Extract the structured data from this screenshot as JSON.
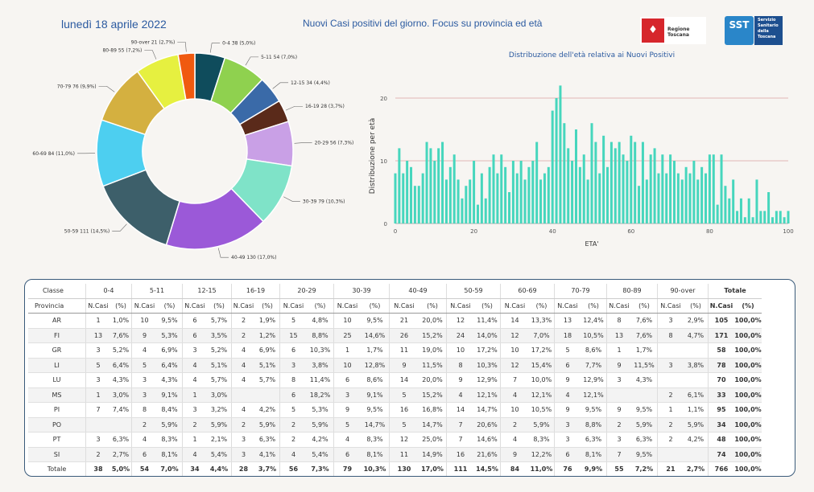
{
  "header": {
    "date": "lunedì 18 aprile 2022",
    "title": "Nuovi Casi positivi del giorno. Focus su provincia ed età",
    "logo_rt": "Regione Toscana",
    "logo_sst_short": "SST",
    "logo_sst_lines": [
      "Servizio",
      "Sanitario",
      "della",
      "Toscana"
    ]
  },
  "chart_data": [
    {
      "type": "pie",
      "title": "",
      "labels": [
        "0-4",
        "5-11",
        "12-15",
        "16-19",
        "20-29",
        "30-39",
        "40-49",
        "50-59",
        "60-69",
        "70-79",
        "80-89",
        "90-over"
      ],
      "values": [
        38,
        54,
        34,
        28,
        56,
        79,
        130,
        111,
        84,
        76,
        55,
        21
      ],
      "percents": [
        "5,0%",
        "7,0%",
        "4,4%",
        "3,7%",
        "7,3%",
        "10,3%",
        "17,0%",
        "14,5%",
        "11,0%",
        "9,9%",
        "7,2%",
        "2,7%"
      ],
      "slice_labels": [
        "0-4 38 (5,0%)",
        "5-11 54 (7,0%)",
        "12-15 34 (4,4%)",
        "16-19 28 (3,7%)",
        "20-29 56 (7,3%)",
        "30-39 79 (10,3%)",
        "40-49 130 (17,0%)",
        "50-59 111 (14,5%)",
        "60-69 84 (11,0%)",
        "70-79 76 (9,9%)",
        "80-89 55 (7,2%)",
        "90-over 21 (2,7%)"
      ],
      "colors": [
        "#0f4c5c",
        "#8fd14f",
        "#3a6aa8",
        "#5a2a1a",
        "#c9a0e6",
        "#7fe3c8",
        "#9b59d8",
        "#3d5f6a",
        "#4dcff0",
        "#d4b040",
        "#e6f040",
        "#f05a10"
      ],
      "donut": true
    },
    {
      "type": "bar",
      "title": "Distribuzione dell'età relativa ai Nuovi Positivi",
      "xlabel": "ETA'",
      "ylabel": "Distribuzione per età",
      "xlim": [
        0,
        100
      ],
      "ylim": [
        0,
        22
      ],
      "xticks": [
        0,
        20,
        40,
        60,
        80,
        100
      ],
      "yticks": [
        0,
        10,
        20
      ],
      "color": "#46d6bd",
      "x": [
        0,
        1,
        2,
        3,
        4,
        5,
        6,
        7,
        8,
        9,
        10,
        11,
        12,
        13,
        14,
        15,
        16,
        17,
        18,
        19,
        20,
        21,
        22,
        23,
        24,
        25,
        26,
        27,
        28,
        29,
        30,
        31,
        32,
        33,
        34,
        35,
        36,
        37,
        38,
        39,
        40,
        41,
        42,
        43,
        44,
        45,
        46,
        47,
        48,
        49,
        50,
        51,
        52,
        53,
        54,
        55,
        56,
        57,
        58,
        59,
        60,
        61,
        62,
        63,
        64,
        65,
        66,
        67,
        68,
        69,
        70,
        71,
        72,
        73,
        74,
        75,
        76,
        77,
        78,
        79,
        80,
        81,
        82,
        83,
        84,
        85,
        86,
        87,
        88,
        89,
        90,
        91,
        92,
        93,
        94,
        95,
        96,
        97,
        98,
        99,
        100
      ],
      "values": [
        8,
        12,
        8,
        10,
        9,
        6,
        6,
        8,
        13,
        12,
        10,
        12,
        13,
        7,
        9,
        11,
        7,
        4,
        6,
        7,
        10,
        3,
        8,
        4,
        9,
        11,
        8,
        11,
        9,
        5,
        10,
        8,
        10,
        7,
        9,
        10,
        13,
        7,
        8,
        9,
        18,
        20,
        22,
        16,
        12,
        10,
        15,
        9,
        11,
        7,
        16,
        13,
        8,
        14,
        9,
        13,
        12,
        13,
        11,
        10,
        14,
        13,
        6,
        13,
        7,
        11,
        12,
        8,
        11,
        8,
        11,
        10,
        8,
        7,
        9,
        8,
        10,
        7,
        9,
        8,
        11,
        11,
        3,
        11,
        6,
        4,
        7,
        2,
        4,
        1,
        4,
        1,
        7,
        2,
        2,
        5,
        1,
        2,
        2,
        1,
        2
      ]
    }
  ],
  "table": {
    "corner_top": "Classe",
    "corner_bottom": "Provincia",
    "groups": [
      "0-4",
      "5-11",
      "12-15",
      "16-19",
      "20-29",
      "30-39",
      "40-49",
      "50-59",
      "60-69",
      "70-79",
      "80-89",
      "90-over",
      "Totale"
    ],
    "sub_n": "N.Casi",
    "sub_p": "(%)",
    "rows": [
      {
        "prov": "AR",
        "cells": [
          "1",
          "1,0%",
          "10",
          "9,5%",
          "6",
          "5,7%",
          "2",
          "1,9%",
          "5",
          "4,8%",
          "10",
          "9,5%",
          "21",
          "20,0%",
          "12",
          "11,4%",
          "14",
          "13,3%",
          "13",
          "12,4%",
          "8",
          "7,6%",
          "3",
          "2,9%",
          "105",
          "100,0%"
        ]
      },
      {
        "prov": "FI",
        "cells": [
          "13",
          "7,6%",
          "9",
          "5,3%",
          "6",
          "3,5%",
          "2",
          "1,2%",
          "15",
          "8,8%",
          "25",
          "14,6%",
          "26",
          "15,2%",
          "24",
          "14,0%",
          "12",
          "7,0%",
          "18",
          "10,5%",
          "13",
          "7,6%",
          "8",
          "4,7%",
          "171",
          "100,0%"
        ]
      },
      {
        "prov": "GR",
        "cells": [
          "3",
          "5,2%",
          "4",
          "6,9%",
          "3",
          "5,2%",
          "4",
          "6,9%",
          "6",
          "10,3%",
          "1",
          "1,7%",
          "11",
          "19,0%",
          "10",
          "17,2%",
          "10",
          "17,2%",
          "5",
          "8,6%",
          "1",
          "1,7%",
          "",
          "",
          "58",
          "100,0%"
        ]
      },
      {
        "prov": "LI",
        "cells": [
          "5",
          "6,4%",
          "5",
          "6,4%",
          "4",
          "5,1%",
          "4",
          "5,1%",
          "3",
          "3,8%",
          "10",
          "12,8%",
          "9",
          "11,5%",
          "8",
          "10,3%",
          "12",
          "15,4%",
          "6",
          "7,7%",
          "9",
          "11,5%",
          "3",
          "3,8%",
          "78",
          "100,0%"
        ]
      },
      {
        "prov": "LU",
        "cells": [
          "3",
          "4,3%",
          "3",
          "4,3%",
          "4",
          "5,7%",
          "4",
          "5,7%",
          "8",
          "11,4%",
          "6",
          "8,6%",
          "14",
          "20,0%",
          "9",
          "12,9%",
          "7",
          "10,0%",
          "9",
          "12,9%",
          "3",
          "4,3%",
          "",
          "",
          "70",
          "100,0%"
        ]
      },
      {
        "prov": "MS",
        "cells": [
          "1",
          "3,0%",
          "3",
          "9,1%",
          "1",
          "3,0%",
          "",
          "",
          "6",
          "18,2%",
          "3",
          "9,1%",
          "5",
          "15,2%",
          "4",
          "12,1%",
          "4",
          "12,1%",
          "4",
          "12,1%",
          "",
          "",
          "2",
          "6,1%",
          "33",
          "100,0%"
        ]
      },
      {
        "prov": "PI",
        "cells": [
          "7",
          "7,4%",
          "8",
          "8,4%",
          "3",
          "3,2%",
          "4",
          "4,2%",
          "5",
          "5,3%",
          "9",
          "9,5%",
          "16",
          "16,8%",
          "14",
          "14,7%",
          "10",
          "10,5%",
          "9",
          "9,5%",
          "9",
          "9,5%",
          "1",
          "1,1%",
          "95",
          "100,0%"
        ]
      },
      {
        "prov": "PO",
        "cells": [
          "",
          "",
          "2",
          "5,9%",
          "2",
          "5,9%",
          "2",
          "5,9%",
          "2",
          "5,9%",
          "5",
          "14,7%",
          "5",
          "14,7%",
          "7",
          "20,6%",
          "2",
          "5,9%",
          "3",
          "8,8%",
          "2",
          "5,9%",
          "2",
          "5,9%",
          "34",
          "100,0%"
        ]
      },
      {
        "prov": "PT",
        "cells": [
          "3",
          "6,3%",
          "4",
          "8,3%",
          "1",
          "2,1%",
          "3",
          "6,3%",
          "2",
          "4,2%",
          "4",
          "8,3%",
          "12",
          "25,0%",
          "7",
          "14,6%",
          "4",
          "8,3%",
          "3",
          "6,3%",
          "3",
          "6,3%",
          "2",
          "4,2%",
          "48",
          "100,0%"
        ]
      },
      {
        "prov": "SI",
        "cells": [
          "2",
          "2,7%",
          "6",
          "8,1%",
          "4",
          "5,4%",
          "3",
          "4,1%",
          "4",
          "5,4%",
          "6",
          "8,1%",
          "11",
          "14,9%",
          "16",
          "21,6%",
          "9",
          "12,2%",
          "6",
          "8,1%",
          "7",
          "9,5%",
          "",
          "",
          "74",
          "100,0%"
        ]
      }
    ],
    "total": {
      "prov": "Totale",
      "cells": [
        "38",
        "5,0%",
        "54",
        "7,0%",
        "34",
        "4,4%",
        "28",
        "3,7%",
        "56",
        "7,3%",
        "79",
        "10,3%",
        "130",
        "17,0%",
        "111",
        "14,5%",
        "84",
        "11,0%",
        "76",
        "9,9%",
        "55",
        "7,2%",
        "21",
        "2,7%",
        "766",
        "100,0%"
      ]
    }
  }
}
